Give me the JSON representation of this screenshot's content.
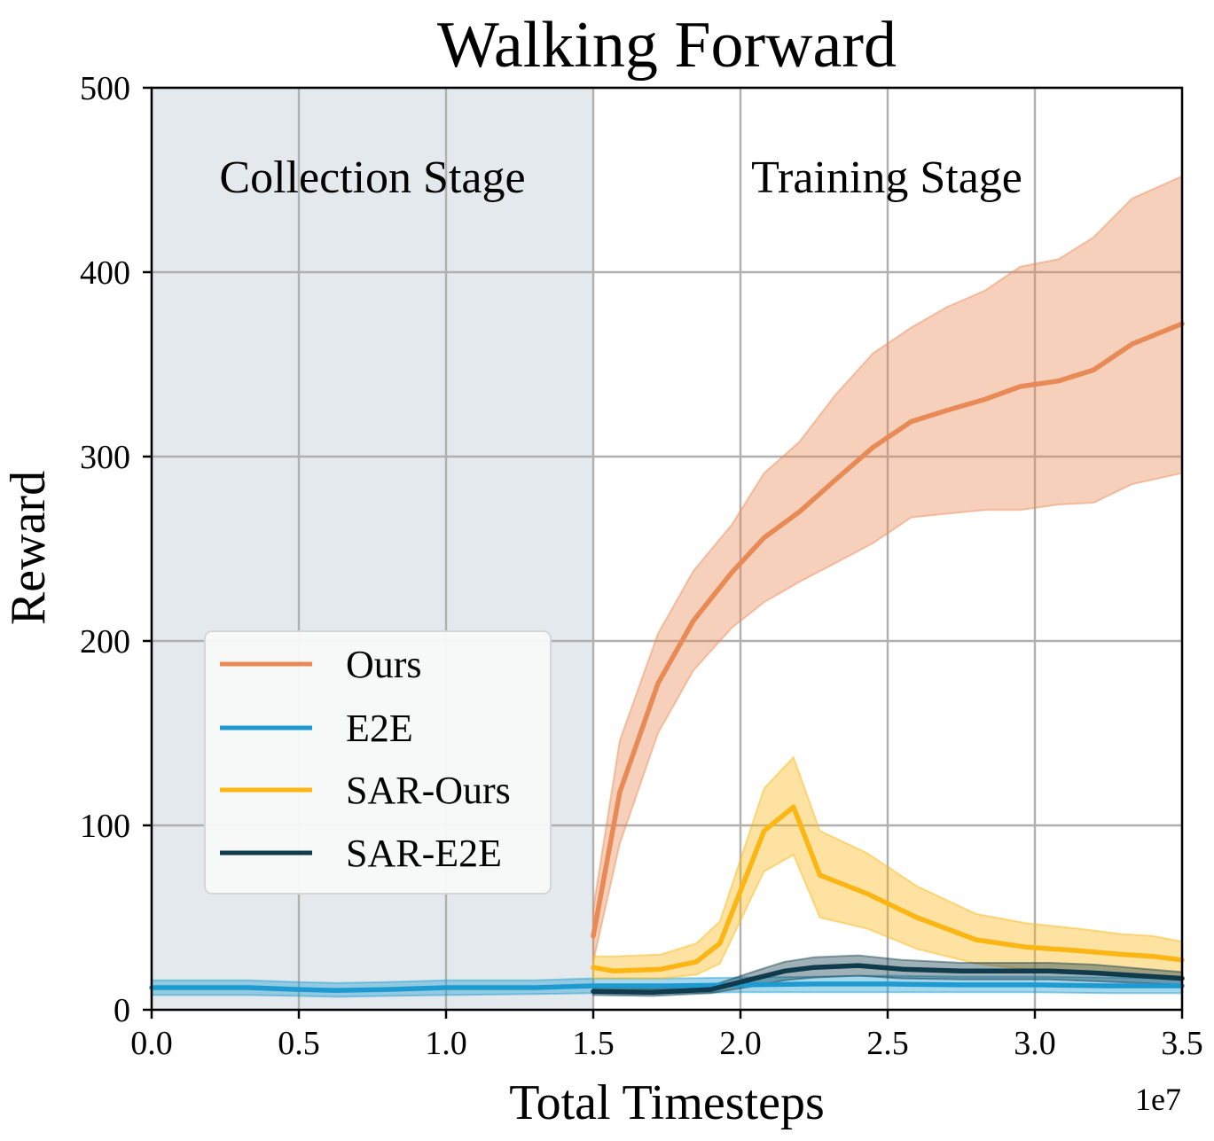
{
  "chart_data": {
    "type": "line",
    "title": "Walking Forward",
    "xlabel": "Total Timesteps",
    "ylabel": "Reward",
    "x_multiplier_label": "1e7",
    "xlim": [
      0,
      3.5
    ],
    "ylim": [
      0,
      500
    ],
    "xticks": [
      0.0,
      0.5,
      1.0,
      1.5,
      2.0,
      2.5,
      3.0,
      3.5
    ],
    "xtick_labels": [
      "0.0",
      "0.5",
      "1.0",
      "1.5",
      "2.0",
      "2.5",
      "3.0",
      "3.5"
    ],
    "yticks": [
      0,
      100,
      200,
      300,
      400,
      500
    ],
    "ytick_labels": [
      "0",
      "100",
      "200",
      "300",
      "400",
      "500"
    ],
    "grid": true,
    "legend_position": "center-left",
    "regions": [
      {
        "label": "Collection Stage",
        "x_range": [
          0,
          1.5
        ],
        "color": "#e3e9ec",
        "label_y": 452
      },
      {
        "label": "Training Stage",
        "x_range": [
          1.5,
          3.5
        ],
        "color": "#ffffff",
        "label_y": 452
      }
    ],
    "series": [
      {
        "name": "Ours",
        "color": "#e88a55",
        "x": [
          1.5,
          1.59,
          1.72,
          1.84,
          1.97,
          2.08,
          2.2,
          2.32,
          2.45,
          2.58,
          2.7,
          2.83,
          2.95,
          3.08,
          3.2,
          3.33,
          3.5
        ],
        "y": [
          40,
          118,
          177,
          211,
          237,
          256,
          270,
          287,
          305,
          319,
          325,
          331,
          338,
          341,
          347,
          361,
          372
        ],
        "lower": [
          26,
          90,
          150,
          184,
          207,
          221,
          232,
          242,
          253,
          267,
          269,
          271,
          271,
          274,
          275,
          285,
          291
        ],
        "upper": [
          55,
          146,
          204,
          238,
          263,
          291,
          308,
          333,
          356,
          370,
          381,
          390,
          403,
          407,
          419,
          440,
          452
        ]
      },
      {
        "name": "E2E",
        "color": "#1d9bd1",
        "x": [
          0,
          0.33,
          0.5,
          0.63,
          0.8,
          1.0,
          1.3,
          1.5,
          1.75,
          2.0,
          2.25,
          2.5,
          2.75,
          3.0,
          3.25,
          3.5
        ],
        "y": [
          12,
          12,
          11,
          10.5,
          11,
          12,
          12,
          13,
          13,
          13.5,
          14,
          14,
          13.5,
          13.5,
          13,
          13
        ],
        "lower": [
          8,
          8,
          7.5,
          7,
          7.5,
          8,
          8.5,
          9,
          9,
          9.5,
          9.5,
          9.5,
          9.5,
          9.5,
          9,
          9
        ],
        "upper": [
          16,
          16,
          15,
          14.5,
          15,
          16,
          16,
          17,
          17,
          17.5,
          18,
          18.5,
          18,
          18,
          17.5,
          17
        ]
      },
      {
        "name": "SAR-Ours",
        "color": "#fbb614",
        "x": [
          1.5,
          1.57,
          1.73,
          1.85,
          1.93,
          2.08,
          2.18,
          2.27,
          2.43,
          2.6,
          2.8,
          2.97,
          3.15,
          3.3,
          3.4,
          3.5
        ],
        "y": [
          23,
          21,
          22,
          26,
          36,
          97,
          110,
          73,
          63,
          50,
          38,
          34,
          32,
          30,
          29,
          27
        ],
        "lower": [
          17,
          17,
          17,
          19,
          25,
          75,
          84,
          50,
          44,
          33,
          25,
          22,
          20,
          19,
          18,
          18
        ],
        "upper": [
          29,
          29,
          30,
          36,
          48,
          120,
          137,
          97,
          85,
          67,
          52,
          47,
          44,
          41,
          40,
          37
        ]
      },
      {
        "name": "SAR-E2E",
        "color": "#0f3b4c",
        "x": [
          1.5,
          1.7,
          1.9,
          2.05,
          2.15,
          2.25,
          2.4,
          2.55,
          2.75,
          2.9,
          3.05,
          3.2,
          3.35,
          3.5
        ],
        "y": [
          10,
          9.5,
          11,
          17,
          21,
          23,
          24,
          22,
          21,
          21,
          21,
          20,
          18.5,
          17
        ],
        "lower": [
          8,
          7.5,
          9,
          13,
          16,
          17.5,
          18.5,
          17,
          16.5,
          16.5,
          16.5,
          15.5,
          14.5,
          13.5
        ],
        "upper": [
          12,
          11.5,
          13,
          21,
          26,
          28.5,
          29.5,
          27,
          25.5,
          25.5,
          25.5,
          24.5,
          22.5,
          20.5
        ]
      }
    ]
  }
}
